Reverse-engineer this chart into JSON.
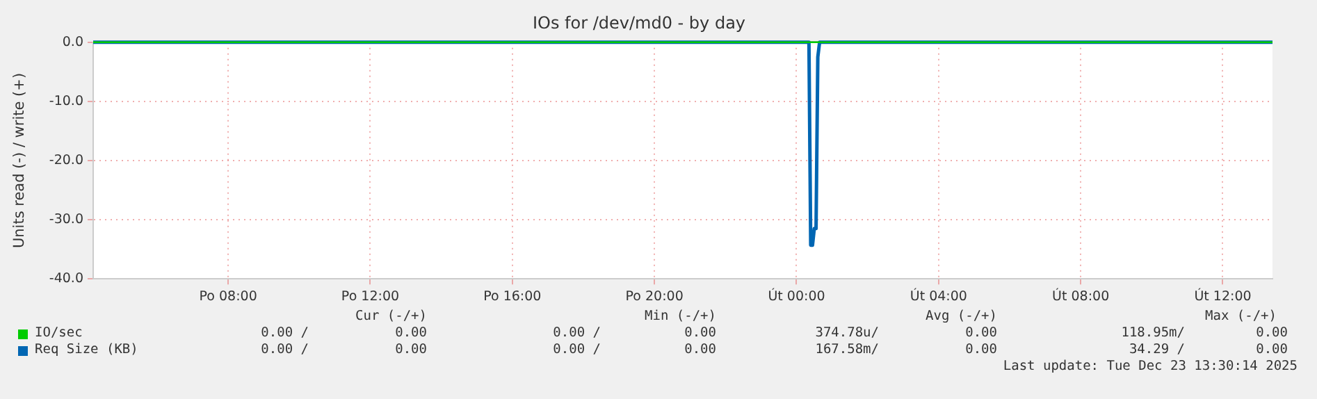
{
  "chart_data": {
    "type": "line",
    "title": "IOs for /dev/md0 - by day",
    "ylabel": "Units read (-) / write (+)",
    "xlim": [
      "2025-12-22T04:12",
      "2025-12-23T13:24"
    ],
    "xticks": [
      {
        "value": "2025-12-22T08:00",
        "label": "Po 08:00"
      },
      {
        "value": "2025-12-22T12:00",
        "label": "Po 12:00"
      },
      {
        "value": "2025-12-22T16:00",
        "label": "Po 16:00"
      },
      {
        "value": "2025-12-22T20:00",
        "label": "Po 20:00"
      },
      {
        "value": "2025-12-23T00:00",
        "label": "Út 00:00"
      },
      {
        "value": "2025-12-23T04:00",
        "label": "Út 04:00"
      },
      {
        "value": "2025-12-23T08:00",
        "label": "Út 08:00"
      },
      {
        "value": "2025-12-23T12:00",
        "label": "Út 12:00"
      }
    ],
    "ylim": [
      -40,
      0
    ],
    "yticks": [
      {
        "value": -40,
        "label": "-40.0"
      },
      {
        "value": -30,
        "label": "-30.0"
      },
      {
        "value": -20,
        "label": "-20.0"
      },
      {
        "value": -10,
        "label": "-10.0"
      },
      {
        "value": 0,
        "label": "0.0"
      }
    ],
    "series": [
      {
        "name": "IO/sec",
        "color": "#00cc00",
        "x": [
          "2025-12-22T04:12",
          "2025-12-23T13:24"
        ],
        "values": [
          0,
          0
        ]
      },
      {
        "name": "Req Size (KB)",
        "color": "#0066b3",
        "x": [
          "2025-12-22T04:12",
          "2025-12-23T00:21",
          "2025-12-23T00:24",
          "2025-12-23T00:27",
          "2025-12-23T00:30",
          "2025-12-23T00:33",
          "2025-12-23T00:36",
          "2025-12-23T00:39",
          "2025-12-23T13:24"
        ],
        "values": [
          0,
          0,
          -34.3,
          -34.3,
          -31.5,
          -31.5,
          -2.5,
          0,
          0
        ]
      }
    ],
    "ref_lines": [
      {
        "axis": "y",
        "value": 0,
        "color": "#000000"
      }
    ],
    "grid": true,
    "legend": "bottom",
    "marker": "none",
    "line_style": "solid",
    "annotations": [
      "Cur (-/+)",
      "Min (-/+)",
      "Avg (-/+)",
      "Max (-/+)",
      "0.00 /",
      "0.00",
      "0.00 /",
      "0.00",
      "374.78u/",
      "0.00",
      "118.95m/",
      "0.00",
      "0.00 /",
      "0.00",
      "0.00 /",
      "0.00",
      "167.58m/",
      "0.00",
      "34.29 /",
      "0.00",
      "Last update: Tue Dec 23 13:30:14 2025"
    ]
  }
}
